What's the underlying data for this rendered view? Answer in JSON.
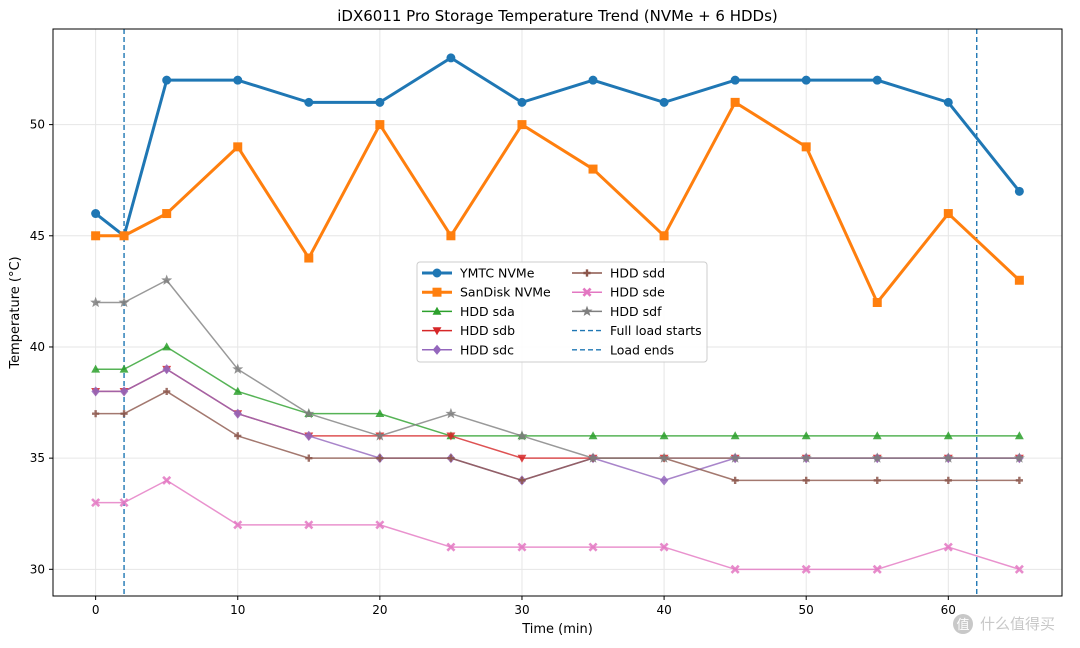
{
  "chart_data": {
    "type": "line",
    "title": "iDX6011 Pro Storage Temperature Trend (NVMe + 6 HDDs)",
    "xlabel": "Time (min)",
    "ylabel": "Temperature (°C)",
    "xlim": [
      -3,
      68
    ],
    "ylim": [
      28.8,
      54.3
    ],
    "x_ticks": [
      0,
      10,
      20,
      30,
      40,
      50,
      60
    ],
    "y_ticks": [
      30,
      35,
      40,
      45,
      50
    ],
    "grid": true,
    "legend_position": "center",
    "x": [
      0,
      2,
      5,
      10,
      15,
      20,
      25,
      30,
      35,
      40,
      45,
      50,
      55,
      60,
      65
    ],
    "series": [
      {
        "name": "YMTC NVMe",
        "color": "#1f77b4",
        "marker": "circle",
        "width": 3,
        "values": [
          46,
          45,
          52,
          52,
          51,
          51,
          53,
          51,
          52,
          51,
          52,
          52,
          52,
          51,
          47
        ]
      },
      {
        "name": "SanDisk NVMe",
        "color": "#ff7f0e",
        "marker": "square",
        "width": 3,
        "values": [
          45,
          45,
          46,
          49,
          44,
          50,
          45,
          50,
          48,
          45,
          51,
          49,
          42,
          46,
          43
        ]
      },
      {
        "name": "HDD sda",
        "color": "#2ca02c",
        "marker": "triangle-up",
        "width": 1.5,
        "values": [
          39,
          39,
          40,
          38,
          37,
          37,
          36,
          36,
          36,
          36,
          36,
          36,
          36,
          36,
          36
        ]
      },
      {
        "name": "HDD sdb",
        "color": "#d62728",
        "marker": "triangle-down",
        "width": 1.5,
        "values": [
          38,
          38,
          39,
          37,
          36,
          36,
          36,
          35,
          35,
          35,
          35,
          35,
          35,
          35,
          35
        ]
      },
      {
        "name": "HDD sdc",
        "color": "#9467bd",
        "marker": "diamond",
        "width": 1.5,
        "values": [
          38,
          38,
          39,
          37,
          36,
          35,
          35,
          34,
          35,
          34,
          35,
          35,
          35,
          35,
          35
        ]
      },
      {
        "name": "HDD sdd",
        "color": "#8c564b",
        "marker": "plus",
        "width": 1.5,
        "values": [
          37,
          37,
          38,
          36,
          35,
          35,
          35,
          34,
          35,
          35,
          34,
          34,
          34,
          34,
          34
        ]
      },
      {
        "name": "HDD sde",
        "color": "#e377c2",
        "marker": "x",
        "width": 1.5,
        "values": [
          33,
          33,
          34,
          32,
          32,
          32,
          31,
          31,
          31,
          31,
          30,
          30,
          30,
          31,
          30
        ]
      },
      {
        "name": "HDD sdf",
        "color": "#7f7f7f",
        "marker": "star",
        "width": 1.5,
        "values": [
          42,
          42,
          43,
          39,
          37,
          36,
          37,
          36,
          35,
          35,
          35,
          35,
          35,
          35,
          35
        ]
      }
    ],
    "vlines": [
      {
        "name": "Full load starts",
        "x": 2,
        "color": "#1f77b4"
      },
      {
        "name": "Load ends",
        "x": 62,
        "color": "#1f77b4"
      }
    ]
  },
  "watermark": "什么值得买"
}
